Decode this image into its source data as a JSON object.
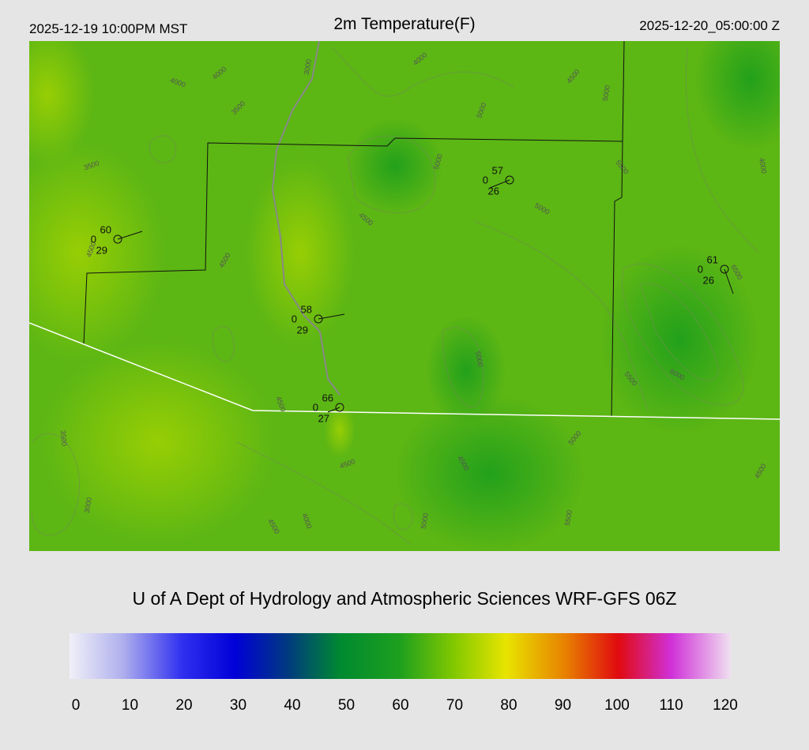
{
  "header": {
    "local_time": "2025-12-19 10:00PM MST",
    "title": "2m Temperature(F)",
    "utc_time": "2025-12-20_05:00:00 Z"
  },
  "map": {
    "contour_labels": [
      "4000",
      "4000",
      "3000",
      "4000",
      "4500",
      "5000",
      "5000",
      "3500",
      "3500",
      "5000",
      "5500",
      "4000",
      "4500",
      "5000",
      "4500",
      "4500",
      "6500",
      "5000",
      "5500",
      "6000",
      "4500",
      "3500",
      "4500",
      "4500",
      "5000",
      "3000",
      "4500",
      "4000",
      "5000",
      "5500",
      "4500"
    ],
    "stations": [
      {
        "temperature": "60",
        "wind": "0",
        "dewpoint": "29"
      },
      {
        "temperature": "57",
        "wind": "0",
        "dewpoint": "26"
      },
      {
        "temperature": "61",
        "wind": "0",
        "dewpoint": "26"
      },
      {
        "temperature": "58",
        "wind": "0",
        "dewpoint": "29"
      },
      {
        "temperature": "66",
        "wind": "0",
        "dewpoint": "27"
      }
    ]
  },
  "footer": {
    "credit": "U of A Dept of Hydrology and Atmospheric Sciences WRF-GFS 06Z"
  },
  "colorbar": {
    "ticks": [
      "0",
      "10",
      "20",
      "30",
      "40",
      "50",
      "60",
      "70",
      "80",
      "90",
      "100",
      "110",
      "120"
    ]
  }
}
